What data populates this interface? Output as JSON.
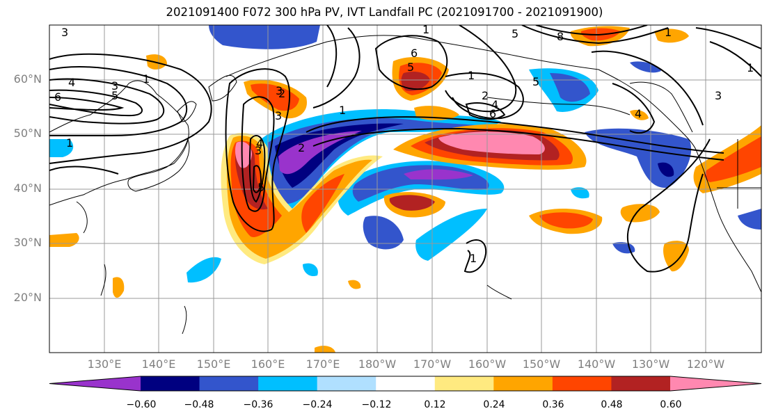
{
  "title": "2021091400 F072 300 hPa PV, IVT Landfall PC (2021091700 - 2021091900)",
  "lat_labels": [
    "60°N",
    "50°N",
    "40°N",
    "30°N",
    "20°N"
  ],
  "lon_labels": [
    "130°E",
    "140°E",
    "150°E",
    "160°E",
    "170°E",
    "180°W",
    "170°W",
    "160°W",
    "150°W",
    "140°W",
    "130°W",
    "120°W"
  ],
  "colorbar": {
    "ticks": [
      "−0.60",
      "−0.48",
      "−0.36",
      "−0.24",
      "−0.12",
      "0.12",
      "0.24",
      "0.36",
      "0.48",
      "0.60"
    ],
    "colors": [
      "#9933cc",
      "#000080",
      "#3355cc",
      "#00bfff",
      "#b0e0ff",
      "#ffffff",
      "#ffea80",
      "#ffa500",
      "#ff4500",
      "#b22222",
      "#ff88b0"
    ]
  },
  "contour_labels": [
    "3",
    "4",
    "3",
    "5",
    "1",
    "6",
    "1",
    "1",
    "5",
    "8",
    "1",
    "6",
    "5",
    "1",
    "2",
    "4",
    "6",
    "1",
    "5",
    "4",
    "3",
    "1",
    "2",
    "5",
    "3",
    "3",
    "1",
    "2",
    "4",
    "3"
  ]
}
